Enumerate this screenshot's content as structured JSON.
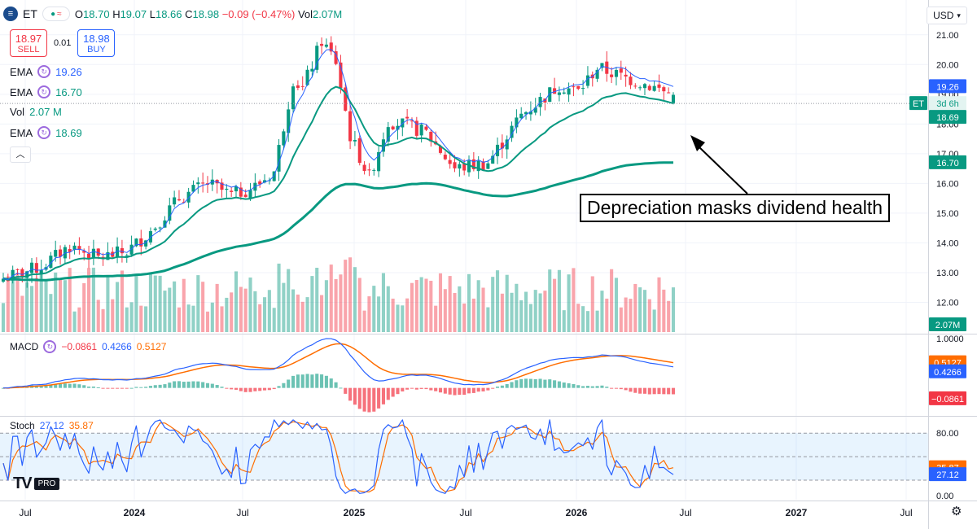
{
  "header": {
    "symbol": "ET",
    "logo_letter": "≡",
    "ohlc_label_o": "O",
    "open": "18.70",
    "ohlc_label_h": "H",
    "high": "19.07",
    "ohlc_label_l": "L",
    "low": "18.66",
    "ohlc_label_c": "C",
    "close": "18.98",
    "change": "−0.09 (−0.47%)",
    "vol_label": "Vol",
    "vol": "2.07M"
  },
  "trade": {
    "sell_price": "18.97",
    "sell_label": "SELL",
    "spread": "0.01",
    "buy_price": "18.98",
    "buy_label": "BUY"
  },
  "indicators": [
    {
      "name": "EMA",
      "value": "19.26",
      "color": "#2962ff"
    },
    {
      "name": "EMA",
      "value": "16.70",
      "color": "#089981"
    },
    {
      "name": "Vol",
      "value": "2.07 M",
      "color": "#089981"
    },
    {
      "name": "EMA",
      "value": "18.69",
      "color": "#089981"
    }
  ],
  "currency": "USD",
  "macd_label": {
    "name": "MACD",
    "hist": "−0.0861",
    "macd": "0.4266",
    "signal": "0.5127"
  },
  "stoch_label": {
    "name": "Stoch",
    "k": "27.12",
    "d": "35.87"
  },
  "price_badges": {
    "ema_fast": "19.26",
    "countdown_symbol": "ET",
    "countdown": "3d 6h",
    "last": "18.69",
    "ema_slow": "16.70",
    "volume": "2.07M",
    "macd_signal": "0.5127",
    "macd_line": "0.4266",
    "macd_hist": "−0.0861",
    "stoch_d": "35.87",
    "stoch_k": "27.12"
  },
  "brand": {
    "logo": "TV",
    "tier": "PRO"
  },
  "annotation": "Depreciation masks dividend health",
  "colors": {
    "up": "#089981",
    "down": "#f23645",
    "ema_fast": "#2962ff",
    "ema_mid": "#089981",
    "macd_line": "#2962ff",
    "macd_signal": "#ff6d00",
    "stoch_k": "#2962ff",
    "stoch_d": "#ff6d00"
  },
  "chart_data": {
    "type": "candlestick",
    "x_tick_labels": [
      "Jul",
      "2024",
      "Jul",
      "2025",
      "Jul",
      "2026",
      "Jul",
      "2027",
      "Jul"
    ],
    "price_axis": {
      "ticks": [
        "21.00",
        "20.00",
        "19.00",
        "18.00",
        "17.00",
        "16.00",
        "15.00",
        "14.00",
        "13.00",
        "12.00"
      ],
      "range": [
        11.0,
        21.35
      ]
    },
    "macd_axis": {
      "ticks": [
        "1.0000",
        "0.5000"
      ],
      "range": [
        -0.55,
        1.05
      ]
    },
    "stoch_axis": {
      "ticks": [
        "80.00",
        "40.00",
        "0.00"
      ],
      "range": [
        -5,
        100
      ],
      "band": [
        20,
        80
      ]
    },
    "price_anchors_weeks": [
      0,
      8,
      14,
      20,
      26,
      31,
      37,
      43,
      48,
      53,
      57,
      61,
      63,
      67,
      70,
      73,
      77,
      81,
      84,
      89,
      95,
      102,
      109,
      117,
      121,
      125,
      130,
      136,
      139,
      141
    ],
    "price_anchors_close": [
      12.8,
      13.2,
      13.9,
      13.5,
      13.7,
      14.4,
      15.5,
      16.0,
      15.6,
      15.9,
      16.4,
      19.5,
      19.2,
      20.8,
      20.1,
      17.6,
      16.2,
      18.1,
      18.0,
      17.7,
      16.5,
      16.7,
      18.3,
      19.3,
      19.1,
      19.9,
      19.6,
      19.3,
      19.1,
      18.98
    ],
    "ema_fast_last": 19.26,
    "ema_slow_last": 16.7,
    "ema_vol_last": 18.69,
    "macd_last": {
      "macd": 0.4266,
      "signal": 0.5127,
      "hist": -0.0861
    },
    "stoch_last": {
      "k": 27.12,
      "d": 35.87
    },
    "volume_last": "2.07M"
  }
}
